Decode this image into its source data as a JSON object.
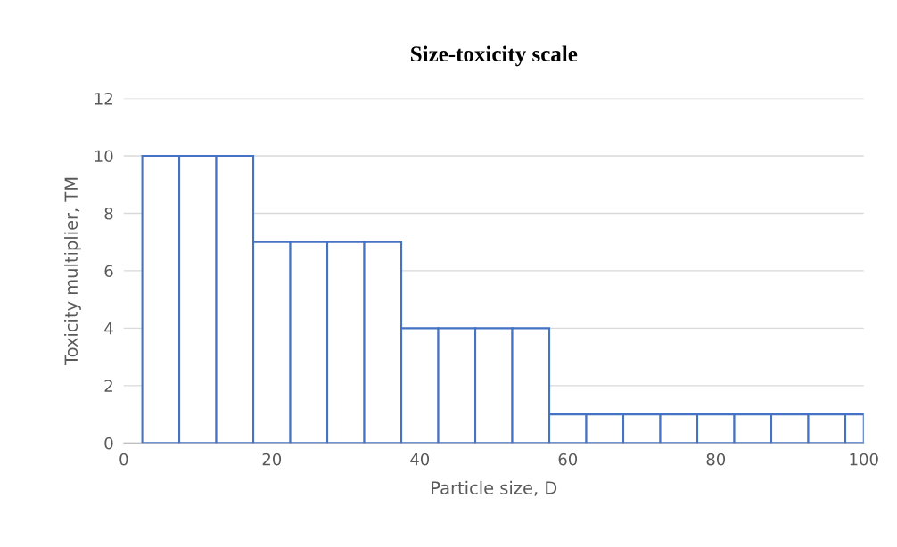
{
  "chart_data": {
    "type": "histogram",
    "title": "Size-toxicity scale",
    "xlabel": "Particle size, D",
    "ylabel": "Toxicity multiplier, TM",
    "bins": [
      2.5,
      7.5,
      12.5,
      17.5,
      22.5,
      27.5,
      32.5,
      37.5,
      42.5,
      47.5,
      52.5,
      57.5,
      62.5,
      67.5,
      72.5,
      77.5,
      82.5,
      87.5,
      92.5,
      97.5,
      100
    ],
    "values": [
      10,
      10,
      10,
      7,
      7,
      7,
      7,
      4,
      4,
      4,
      4,
      1,
      1,
      1,
      1,
      1,
      1,
      1,
      1,
      1
    ],
    "color": "#4472c4",
    "xlim": [
      0,
      100
    ],
    "xticks": [
      0,
      20,
      40,
      60,
      80,
      100
    ],
    "ylim": [
      0,
      12
    ],
    "yticks": [
      0,
      2,
      4,
      6,
      8,
      10,
      12
    ],
    "grid": "y"
  }
}
